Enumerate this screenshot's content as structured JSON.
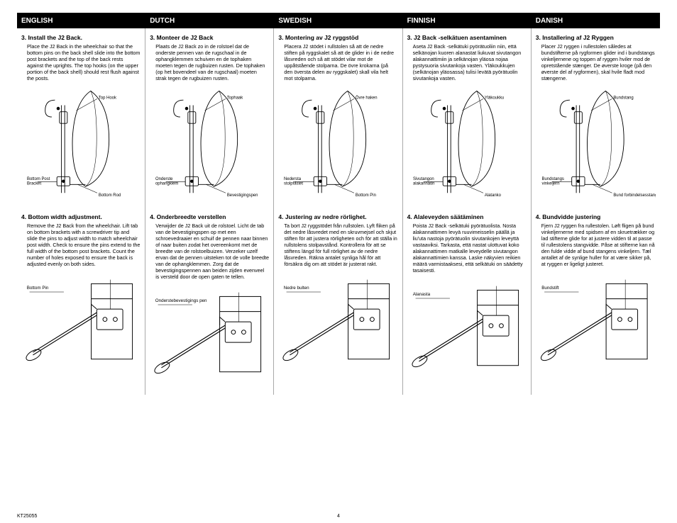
{
  "header": {
    "labels": [
      "ENGLISH",
      "DUTCH",
      "SWEDISH",
      "FINNISH",
      "DANISH"
    ]
  },
  "columns": [
    {
      "step3_title": "3. Install the J2 Back.",
      "step3_body": "Place the J2 Back in the wheelchair so that the bottom pins on the back shell slide into the bottom post brackets and the top of the back rests against the uprights. The top hooks (on the upper portion of the back shell) should rest flush against the posts.",
      "d1_label_top": "Top Hook",
      "d1_label_bl": "Bottom Post Bracket",
      "d1_label_br": "Bottom Rod",
      "step4_title": "4. Bottom width adjustment.",
      "step4_body": "Remove the J2 Back from the wheelchair. Lift tab on bottom brackets with a screwdriver tip and slide the pins to adjust width to match wheelchair post width. Check to ensure the pins extend to the full width of the bottom post brackets. Count the number of holes exposed to ensure the back is adjusted evenly on both sides.",
      "d2_label": "Bottom Pin"
    },
    {
      "step3_title": "3. Monteer de J2 Back",
      "step3_body": "Plaats de J2 Back zo in de rolstoel dat de onderste pennen van de rugschaal in de ophangklemmen schuiven en de tophaken moeten tegen de rugbuizen rusten. De tophaken (op het bovendeel van de rugschaal) moeten strak tegen de rugbuizen rusten.",
      "d1_label_top": "Tophaak",
      "d1_label_bl": "Onderste ophangklem",
      "d1_label_br": "Bevestigingspen",
      "step4_title": "4. Onderbreedte verstellen",
      "step4_body": "Verwijder de J2 Back uit de rolstoel. Licht de tab van de bevestigingspen op met een schroevedraaier en schuif de pennen naar binnen of naar buiten zodat het overeenkomt met de breedte van de rolstoelbuizen. Verzeker uzelf ervan dat de pennen uitsteken tot de volle breedte van de ophangklemmen. Zorg dat de bevestigingspennen aan beiden zijden evenveel is versteld door de open gaten te tellen.",
      "d2_label": "Onderstebevestigings pen"
    },
    {
      "step3_title": "3. Montering av J2 ryggstöd",
      "step3_body": "Placera J2 stödet i rullstolen så att de nedre stiften på ryggskalet så att de glider in i de nedre låsvreden och så att stödet vilar mot de uppåtstående stolparna. De övre krokarna (på den översta delen av ryggskalet) skall vila helt mot stolparna.",
      "d1_label_top": "Övre haken",
      "d1_label_bl": "Nedersta stolpfästet",
      "d1_label_br": "Bottom Pin",
      "step4_title": "4. Justering av nedre rörlighet.",
      "step4_body": "Ta bort J2 ryggstödet från rullstolen. Lyft fliken på det nedre låsvredet med en skruvmejsel och skjut stiften för att justera rörligheten och för att ställa in rullstolens stolpavstånd. Kontrollera för att se stiftens längd för full rörlighet av de nedre låsvreden. Räkna antalet synliga hål för att försäkra dig om att stödet är justerat rakt.",
      "d2_label": "Nedre bulten"
    },
    {
      "step3_title": "3. J2 Back -selkätuen asentaminen",
      "step3_body": "Aseta J2 Back -selkätuki pyörätuoliin niin, että selkänojan kuoren alanastat liukuvat sivutangon alakannattimiin ja selkänojan yläosa nojaa pystysuoria sivutankoja vasten. Yläkoukkujen (selkänojan yläosassa) tulisi levätä pyörätuolin sivutankoja vasten.",
      "d1_label_top": "Yläkoukku",
      "d1_label_bl": "Sivutangon alakannatin",
      "d1_label_br": "Alatanko",
      "step4_title": "4. Alaleveyden säätäminen",
      "step4_body": "Poista J2 Back -selkätuki pyörätuolista. Nosta alakannattimen levyä ruuvimeisselin päällä ja liu'uta nastoja pyörätuolin sivutankojen leveyttä vastaaviksi. Tarkasta, että nastat ulottuvat koko alakannattimen matkalle leveydelle sivutangon alakannattimien kanssa. Laske näkyvien reikien määrä varmistaaksesi, että selkätuki on säädetty tasaisesti.",
      "d2_label": "Alanasta"
    },
    {
      "step3_title": "3. Installering af J2 Ryggen",
      "step3_body": "Placer J2 ryggen i rullestolen således at bundstifterne på rygformen glider ind i bundstangs vinkeljernene og toppen af ryggen hviler mod de opretstående stænger. De øverste kroge (på den øverste del af rygformen), skal hvile fladt mod stængerne.",
      "d1_label_top": "Bundstang",
      "d1_label_bl": "Bundstangs vinkeljern",
      "d1_label_br": "Bund forbindelsesstang",
      "step4_title": "4. Bundvidde justering",
      "step4_body": "Fjern J2 ryggen fra rullestolen. Løft fligen på bund vinkeljernerne med spidsen af en skruetrækker og lad stifterne glide for at justere vidden til at passe til rullestolens stangvidde. Påse at stifterne kan nå den fulde vidde af bund stangens vinkeljern. Tæl antallet af de synlige huller for at være sikker på, at ryggen er ligeligt justeret.",
      "d2_label": "Bundstift"
    }
  ],
  "footer": {
    "code": "KT25055",
    "page": "4"
  },
  "colors": {
    "black": "#000000",
    "white": "#ffffff",
    "divider": "#aaaaaa"
  }
}
